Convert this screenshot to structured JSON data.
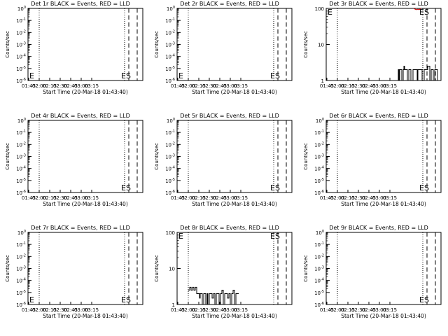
{
  "chart_data": [
    {
      "type": "line",
      "scale": "log",
      "title": "Det 1r BLACK = Events, RED = LLD",
      "xlabel": "Start Time (20-Mar-18 01:43:40)",
      "ylabel": "Counts/sec",
      "xticks": [
        "01:45",
        "02:00",
        "02:15",
        "02:30",
        "02:45",
        "03:00",
        "03:15"
      ],
      "yticks": [
        "10^0",
        "10^-1",
        "10^-2",
        "10^-3",
        "10^-4",
        "10^-5",
        "10^-6"
      ],
      "ylim": [
        1e-06,
        1
      ],
      "annotations": [
        "E",
        "ES"
      ],
      "series": []
    },
    {
      "type": "line",
      "scale": "log",
      "title": "Det 2r BLACK = Events, RED = LLD",
      "xlabel": "Start Time (20-Mar-18 01:43:40)",
      "ylabel": "Counts/sec",
      "xticks": [
        "01:45",
        "02:00",
        "02:15",
        "02:30",
        "02:45",
        "03:00",
        "03:15"
      ],
      "yticks": [
        "10^0",
        "10^-1",
        "10^-2",
        "10^-3",
        "10^-4",
        "10^-5",
        "10^-6"
      ],
      "ylim": [
        1e-06,
        1
      ],
      "annotations": [
        "E",
        "ES"
      ],
      "series": []
    },
    {
      "type": "line",
      "scale": "log",
      "title": "Det 3r BLACK = Events, RED = LLD",
      "xlabel": "Start Time (20-Mar-18 01:43:40)",
      "ylabel": "Counts/sec",
      "xticks": [
        "01:45",
        "02:00",
        "02:15",
        "02:30",
        "02:45",
        "03:00",
        "03:15"
      ],
      "yticks": [
        "100",
        "10",
        "1"
      ],
      "ylim": [
        1,
        100
      ],
      "annotations": [
        "E",
        "ES"
      ],
      "series": [
        {
          "color": "#000000",
          "style": "steps",
          "x": [
            102,
            103,
            104,
            105,
            106,
            107,
            108,
            110,
            111,
            112,
            114,
            116,
            118,
            119,
            121,
            124,
            126,
            128,
            130,
            131,
            134,
            137,
            140,
            143,
            145,
            148,
            150,
            153,
            155,
            158,
            159,
            160
          ],
          "y": [
            1,
            2,
            1,
            2,
            2,
            2,
            1,
            2,
            2.5,
            2,
            2,
            1,
            2,
            2,
            1,
            2,
            2,
            2,
            1,
            2,
            2,
            1,
            2,
            2,
            2.5,
            1,
            2,
            1,
            2,
            2,
            1,
            1
          ]
        },
        {
          "color": "#cc0000",
          "style": "line",
          "x": [
            125,
            127,
            129,
            131,
            133,
            135
          ],
          "y": [
            100,
            95,
            92,
            95,
            92,
            100
          ]
        }
      ]
    },
    {
      "type": "line",
      "scale": "log",
      "title": "Det 4r BLACK = Events, RED = LLD",
      "xlabel": "Start Time (20-Mar-18 01:43:40)",
      "ylabel": "Counts/sec",
      "xticks": [
        "01:45",
        "02:00",
        "02:15",
        "02:30",
        "02:45",
        "03:00",
        "03:15"
      ],
      "yticks": [
        "10^0",
        "10^-1",
        "10^-2",
        "10^-3",
        "10^-4",
        "10^-5",
        "10^-6"
      ],
      "ylim": [
        1e-06,
        1
      ],
      "annotations": [
        "ES"
      ],
      "series": []
    },
    {
      "type": "line",
      "scale": "log",
      "title": "Det 5r BLACK = Events, RED = LLD",
      "xlabel": "Start Time (20-Mar-18 01:43:40)",
      "ylabel": "Counts/sec",
      "xticks": [
        "01:45",
        "02:00",
        "02:15",
        "02:30",
        "02:45",
        "03:00",
        "03:15"
      ],
      "yticks": [
        "10^0",
        "10^-1",
        "10^-2",
        "10^-3",
        "10^-4",
        "10^-5",
        "10^-6"
      ],
      "ylim": [
        1e-06,
        1
      ],
      "annotations": [
        "ES"
      ],
      "series": []
    },
    {
      "type": "line",
      "scale": "log",
      "title": "Det 6r BLACK = Events, RED = LLD",
      "xlabel": "Start Time (20-Mar-18 01:43:40)",
      "ylabel": "Counts/sec",
      "xticks": [
        "01:45",
        "02:00",
        "02:15",
        "02:30",
        "02:45",
        "03:00",
        "03:15"
      ],
      "yticks": [
        "10^0",
        "10^-1",
        "10^-2",
        "10^-3",
        "10^-4",
        "10^-5",
        "10^-6"
      ],
      "ylim": [
        1e-06,
        1
      ],
      "annotations": [
        "ES"
      ],
      "series": []
    },
    {
      "type": "line",
      "scale": "log",
      "title": "Det 7r BLACK = Events, RED = LLD",
      "xlabel": "Start Time (20-Mar-18 01:43:40)",
      "ylabel": "Counts/sec",
      "xticks": [
        "01:45",
        "02:00",
        "02:15",
        "02:30",
        "02:45",
        "03:00",
        "03:15"
      ],
      "yticks": [
        "10^0",
        "10^-1",
        "10^-2",
        "10^-3",
        "10^-4",
        "10^-5",
        "10^-6"
      ],
      "ylim": [
        1e-06,
        1
      ],
      "annotations": [
        "E",
        "ES"
      ],
      "series": []
    },
    {
      "type": "line",
      "scale": "log",
      "title": "Det 8r BLACK = Events, RED = LLD",
      "xlabel": "Start Time (20-Mar-18 01:43:40)",
      "ylabel": "Counts/sec",
      "xticks": [
        "01:45",
        "02:00",
        "02:15",
        "02:30",
        "02:45",
        "03:00",
        "03:15"
      ],
      "yticks": [
        "100",
        "10",
        "1"
      ],
      "ylim": [
        1,
        100
      ],
      "annotations": [
        "E",
        "ES"
      ],
      "series": [
        {
          "color": "#000000",
          "style": "steps",
          "x": [
            16,
            18,
            20,
            22,
            24,
            26,
            28,
            30,
            32,
            33,
            35,
            36,
            38,
            40,
            41,
            43,
            44,
            46,
            48,
            50,
            52,
            54,
            56,
            58,
            60,
            62,
            64,
            66,
            68,
            70,
            72,
            74,
            76,
            78,
            80,
            82,
            84,
            86,
            88
          ],
          "y": [
            2.5,
            3,
            2.5,
            3,
            2.5,
            3,
            2,
            2,
            1.5,
            2,
            2,
            1,
            2,
            2,
            1,
            2,
            1,
            2,
            2,
            1.5,
            2,
            1,
            2,
            2,
            1,
            2,
            2.5,
            1,
            2,
            2,
            1.5,
            2,
            1,
            2,
            2.5,
            1,
            2,
            2,
            2
          ]
        }
      ]
    },
    {
      "type": "line",
      "scale": "log",
      "title": "Det 9r BLACK = Events, RED = LLD",
      "xlabel": "Start Time (20-Mar-18 01:43:40)",
      "ylabel": "Counts/sec",
      "xticks": [
        "01:45",
        "02:00",
        "02:15",
        "02:30",
        "02:45",
        "03:00",
        "03:15"
      ],
      "yticks": [
        "10^0",
        "10^-1",
        "10^-2",
        "10^-3",
        "10^-4",
        "10^-5",
        "10^-6"
      ],
      "ylim": [
        1e-06,
        1
      ],
      "annotations": [
        "ES"
      ],
      "series": []
    }
  ],
  "reference_lines": {
    "dotted_minutes": [
      16,
      138
    ],
    "dashed_minutes": [
      144,
      156
    ]
  }
}
